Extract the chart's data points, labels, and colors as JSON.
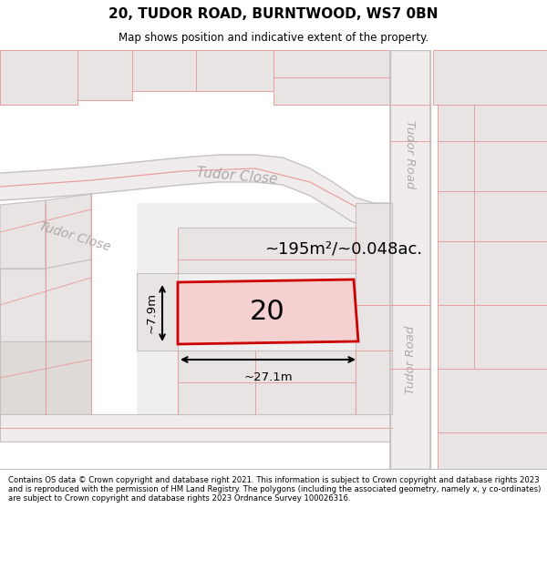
{
  "title_line1": "20, TUDOR ROAD, BURNTWOOD, WS7 0BN",
  "title_line2": "Map shows position and indicative extent of the property.",
  "footer_text": "Contains OS data © Crown copyright and database right 2021. This information is subject to Crown copyright and database rights 2023 and is reproduced with the permission of HM Land Registry. The polygons (including the associated geometry, namely x, y co-ordinates) are subject to Crown copyright and database rights 2023 Ordnance Survey 100026316.",
  "map_bg": "#f7f4f4",
  "road_line_color": "#e8a0a0",
  "road_gray_color": "#c8c0c0",
  "plot_fill": "#f5d0d0",
  "plot_stroke": "#cc0000",
  "block_fill": "#e8e4e4",
  "block_fill2": "#dedad8",
  "text_label": "20",
  "area_label": "~195m²/~0.048ac.",
  "dim_width": "~27.1m",
  "dim_height": "~7.9m",
  "tudor_close_label": "Tudor Close",
  "tudor_road_label": "Tudor Road",
  "tudor_road_label2": "Tudor Road"
}
